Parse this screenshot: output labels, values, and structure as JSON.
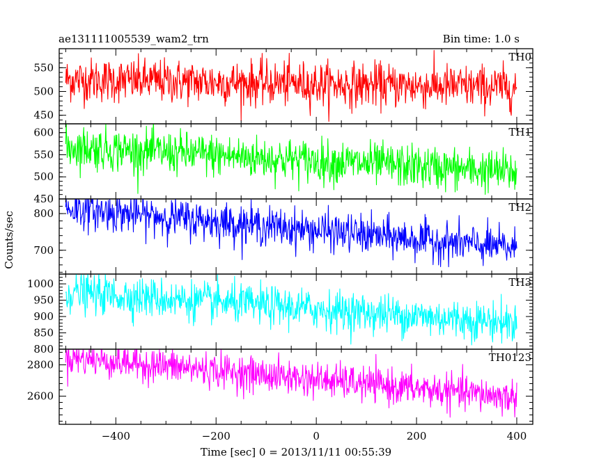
{
  "chart_data": {
    "type": "line",
    "title_left": "ae131111005539_wam2_trn",
    "title_right": "Bin time: 1.0 s",
    "xlabel": "Time [sec] 0 = 2013/11/11 00:55:39",
    "ylabel": "Counts/sec",
    "xlim": [
      -513,
      432
    ],
    "x_ticks": [
      -400,
      -200,
      0,
      200,
      400
    ],
    "x_range_data": [
      -500,
      400
    ],
    "bin_time_s": 1.0,
    "grid": false,
    "panels": [
      {
        "name": "TH0",
        "color": "#ff0000",
        "ylim": [
          432,
          590
        ],
        "y_ticks": [
          450,
          500,
          550
        ],
        "trend_start": 525,
        "trend_end": 508,
        "noise": 23
      },
      {
        "name": "TH1",
        "color": "#00ff00",
        "ylim": [
          450,
          620
        ],
        "y_ticks": [
          450,
          500,
          550,
          600
        ],
        "trend_start": 568,
        "trend_end": 510,
        "noise": 24
      },
      {
        "name": "TH2",
        "color": "#0000ff",
        "ylim": [
          635,
          840
        ],
        "y_ticks": [
          700,
          800
        ],
        "trend_start": 815,
        "trend_end": 705,
        "noise": 26
      },
      {
        "name": "TH3",
        "color": "#00ffff",
        "ylim": [
          800,
          1030
        ],
        "y_ticks": [
          800,
          850,
          900,
          950,
          1000
        ],
        "trend_start": 975,
        "trend_end": 880,
        "noise": 30
      },
      {
        "name": "TH0123",
        "color": "#ff00ff",
        "ylim": [
          2420,
          2900
        ],
        "y_ticks": [
          2600,
          2800
        ],
        "trend_start": 2850,
        "trend_end": 2590,
        "noise": 55
      }
    ]
  }
}
